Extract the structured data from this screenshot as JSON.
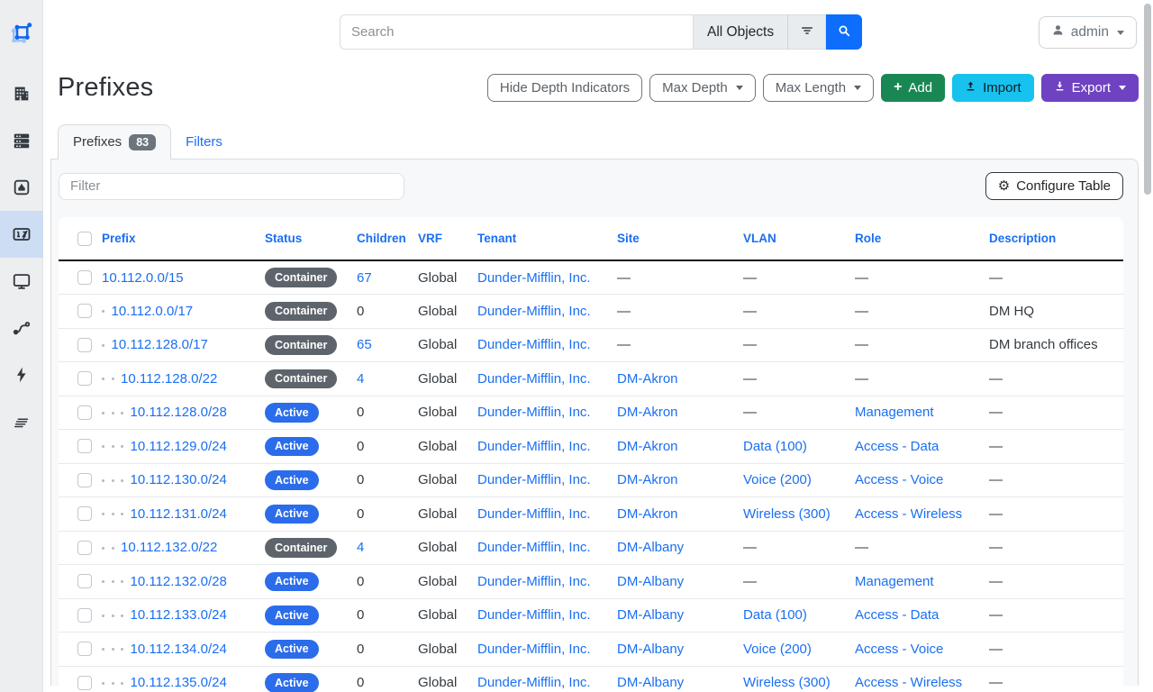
{
  "topbar": {
    "search_placeholder": "Search",
    "scope_label": "All Objects",
    "user_label": "admin"
  },
  "page": {
    "title": "Prefixes",
    "buttons": {
      "hide_depth": "Hide Depth Indicators",
      "max_depth": "Max Depth",
      "max_length": "Max Length",
      "add": "Add",
      "import": "Import",
      "export": "Export"
    },
    "tabs": {
      "prefixes_label": "Prefixes",
      "prefixes_count": "83",
      "filters_label": "Filters"
    },
    "filter_placeholder": "Filter",
    "configure_table_label": "Configure Table",
    "gear_glyph": "⚙"
  },
  "sidebar": {
    "icons": [
      "netbox-logo",
      "organization-building",
      "devices-rack",
      "connections-port",
      "ipam-counter",
      "virtualization-monitor",
      "circuits-route",
      "power-bolt",
      "provisioning-lines"
    ],
    "active_icon": "ipam-counter"
  },
  "table": {
    "columns": [
      "Prefix",
      "Status",
      "Children",
      "VRF",
      "Tenant",
      "Site",
      "VLAN",
      "Role",
      "Description"
    ],
    "rows": [
      {
        "depth": 0,
        "prefix": "10.112.0.0/15",
        "status": "Container",
        "children": "67",
        "children_link": true,
        "vrf": "Global",
        "tenant": "Dunder-Mifflin, Inc.",
        "site": "—",
        "vlan": "—",
        "role": "—",
        "description": "—"
      },
      {
        "depth": 1,
        "prefix": "10.112.0.0/17",
        "status": "Container",
        "children": "0",
        "children_link": false,
        "vrf": "Global",
        "tenant": "Dunder-Mifflin, Inc.",
        "site": "—",
        "vlan": "—",
        "role": "—",
        "description": "DM HQ"
      },
      {
        "depth": 1,
        "prefix": "10.112.128.0/17",
        "status": "Container",
        "children": "65",
        "children_link": true,
        "vrf": "Global",
        "tenant": "Dunder-Mifflin, Inc.",
        "site": "—",
        "vlan": "—",
        "role": "—",
        "description": "DM branch offices"
      },
      {
        "depth": 2,
        "prefix": "10.112.128.0/22",
        "status": "Container",
        "children": "4",
        "children_link": true,
        "vrf": "Global",
        "tenant": "Dunder-Mifflin, Inc.",
        "site": "DM-Akron",
        "vlan": "—",
        "role": "—",
        "description": "—"
      },
      {
        "depth": 3,
        "prefix": "10.112.128.0/28",
        "status": "Active",
        "children": "0",
        "children_link": false,
        "vrf": "Global",
        "tenant": "Dunder-Mifflin, Inc.",
        "site": "DM-Akron",
        "vlan": "—",
        "role": "Management",
        "description": "—"
      },
      {
        "depth": 3,
        "prefix": "10.112.129.0/24",
        "status": "Active",
        "children": "0",
        "children_link": false,
        "vrf": "Global",
        "tenant": "Dunder-Mifflin, Inc.",
        "site": "DM-Akron",
        "vlan": "Data (100)",
        "role": "Access - Data",
        "description": "—"
      },
      {
        "depth": 3,
        "prefix": "10.112.130.0/24",
        "status": "Active",
        "children": "0",
        "children_link": false,
        "vrf": "Global",
        "tenant": "Dunder-Mifflin, Inc.",
        "site": "DM-Akron",
        "vlan": "Voice (200)",
        "role": "Access - Voice",
        "description": "—"
      },
      {
        "depth": 3,
        "prefix": "10.112.131.0/24",
        "status": "Active",
        "children": "0",
        "children_link": false,
        "vrf": "Global",
        "tenant": "Dunder-Mifflin, Inc.",
        "site": "DM-Akron",
        "vlan": "Wireless (300)",
        "role": "Access - Wireless",
        "description": "—"
      },
      {
        "depth": 2,
        "prefix": "10.112.132.0/22",
        "status": "Container",
        "children": "4",
        "children_link": true,
        "vrf": "Global",
        "tenant": "Dunder-Mifflin, Inc.",
        "site": "DM-Albany",
        "vlan": "—",
        "role": "—",
        "description": "—"
      },
      {
        "depth": 3,
        "prefix": "10.112.132.0/28",
        "status": "Active",
        "children": "0",
        "children_link": false,
        "vrf": "Global",
        "tenant": "Dunder-Mifflin, Inc.",
        "site": "DM-Albany",
        "vlan": "—",
        "role": "Management",
        "description": "—"
      },
      {
        "depth": 3,
        "prefix": "10.112.133.0/24",
        "status": "Active",
        "children": "0",
        "children_link": false,
        "vrf": "Global",
        "tenant": "Dunder-Mifflin, Inc.",
        "site": "DM-Albany",
        "vlan": "Data (100)",
        "role": "Access - Data",
        "description": "—"
      },
      {
        "depth": 3,
        "prefix": "10.112.134.0/24",
        "status": "Active",
        "children": "0",
        "children_link": false,
        "vrf": "Global",
        "tenant": "Dunder-Mifflin, Inc.",
        "site": "DM-Albany",
        "vlan": "Voice (200)",
        "role": "Access - Voice",
        "description": "—"
      },
      {
        "depth": 3,
        "prefix": "10.112.135.0/24",
        "status": "Active",
        "children": "0",
        "children_link": false,
        "vrf": "Global",
        "tenant": "Dunder-Mifflin, Inc.",
        "site": "DM-Albany",
        "vlan": "Wireless (300)",
        "role": "Access - Wireless",
        "description": "—"
      }
    ]
  },
  "colors": {
    "link_blue": "#1a6ff2",
    "active_badge": "#2b6ceb",
    "container_badge": "#5d646b",
    "add_green": "#198754",
    "import_cyan": "#17c2ee",
    "export_purple": "#6f42c1",
    "search_blue": "#0d6efd",
    "sidebar_active_bg": "#cdddf4",
    "pane_bg": "#f7f8f9"
  }
}
